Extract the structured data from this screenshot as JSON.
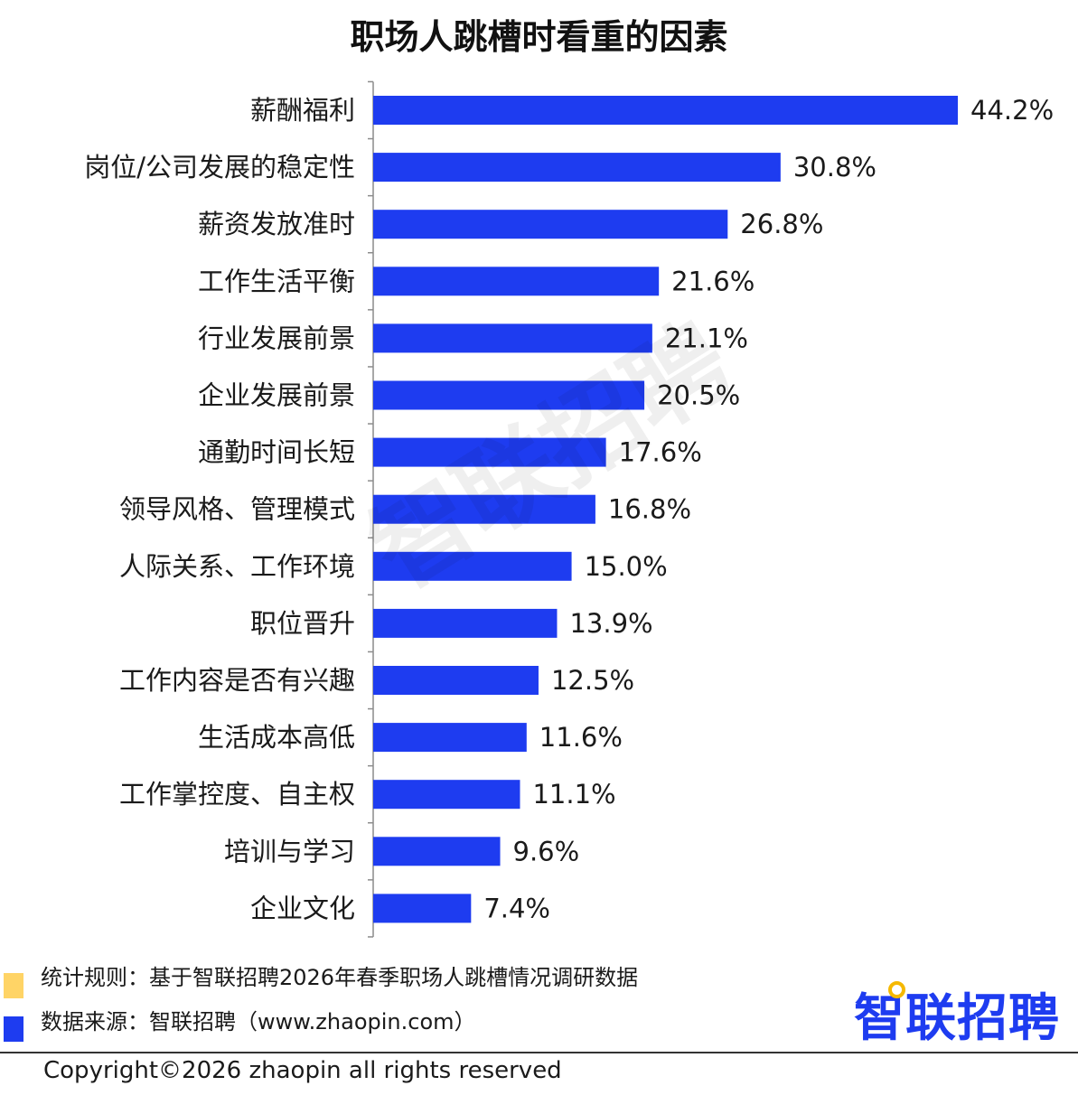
{
  "chart_data": {
    "type": "bar",
    "orientation": "horizontal",
    "title": "职场人跳槽时看重的因素",
    "categories": [
      "薪酬福利",
      "岗位/公司发展的稳定性",
      "薪资发放准时",
      "工作生活平衡",
      "行业发展前景",
      "企业发展前景",
      "通勤时间长短",
      "领导风格、管理模式",
      "人际关系、工作环境",
      "职位晋升",
      "工作内容是否有兴趣",
      "生活成本高低",
      "工作掌控度、自主权",
      "培训与学习",
      "企业文化"
    ],
    "values": [
      44.2,
      30.8,
      26.8,
      21.6,
      21.1,
      20.5,
      17.6,
      16.8,
      15.0,
      13.9,
      12.5,
      11.6,
      11.1,
      9.6,
      7.4
    ],
    "value_labels": [
      "44.2%",
      "30.8%",
      "26.8%",
      "21.6%",
      "21.1%",
      "20.5%",
      "17.6%",
      "16.8%",
      "15.0%",
      "13.9%",
      "12.5%",
      "11.6%",
      "11.1%",
      "9.6%",
      "7.4%"
    ],
    "xlim": [
      0,
      44.2
    ],
    "grid": false,
    "bar_color": "#1e3cf0"
  },
  "watermark": "智联招聘",
  "footer": {
    "rule_text": "统计规则：基于智联招聘2026年春季职场人跳槽情况调研数据",
    "source_text": "数据来源：智联招聘（www.zhaopin.com）",
    "copyright": "Copyright©2026 zhaopin all rights reserved",
    "legend_colors": [
      "#ffd466",
      "#1e3cf0"
    ]
  },
  "logo": {
    "text": "智联招聘",
    "color": "#1e3cf0",
    "accent": "#f5b800"
  }
}
